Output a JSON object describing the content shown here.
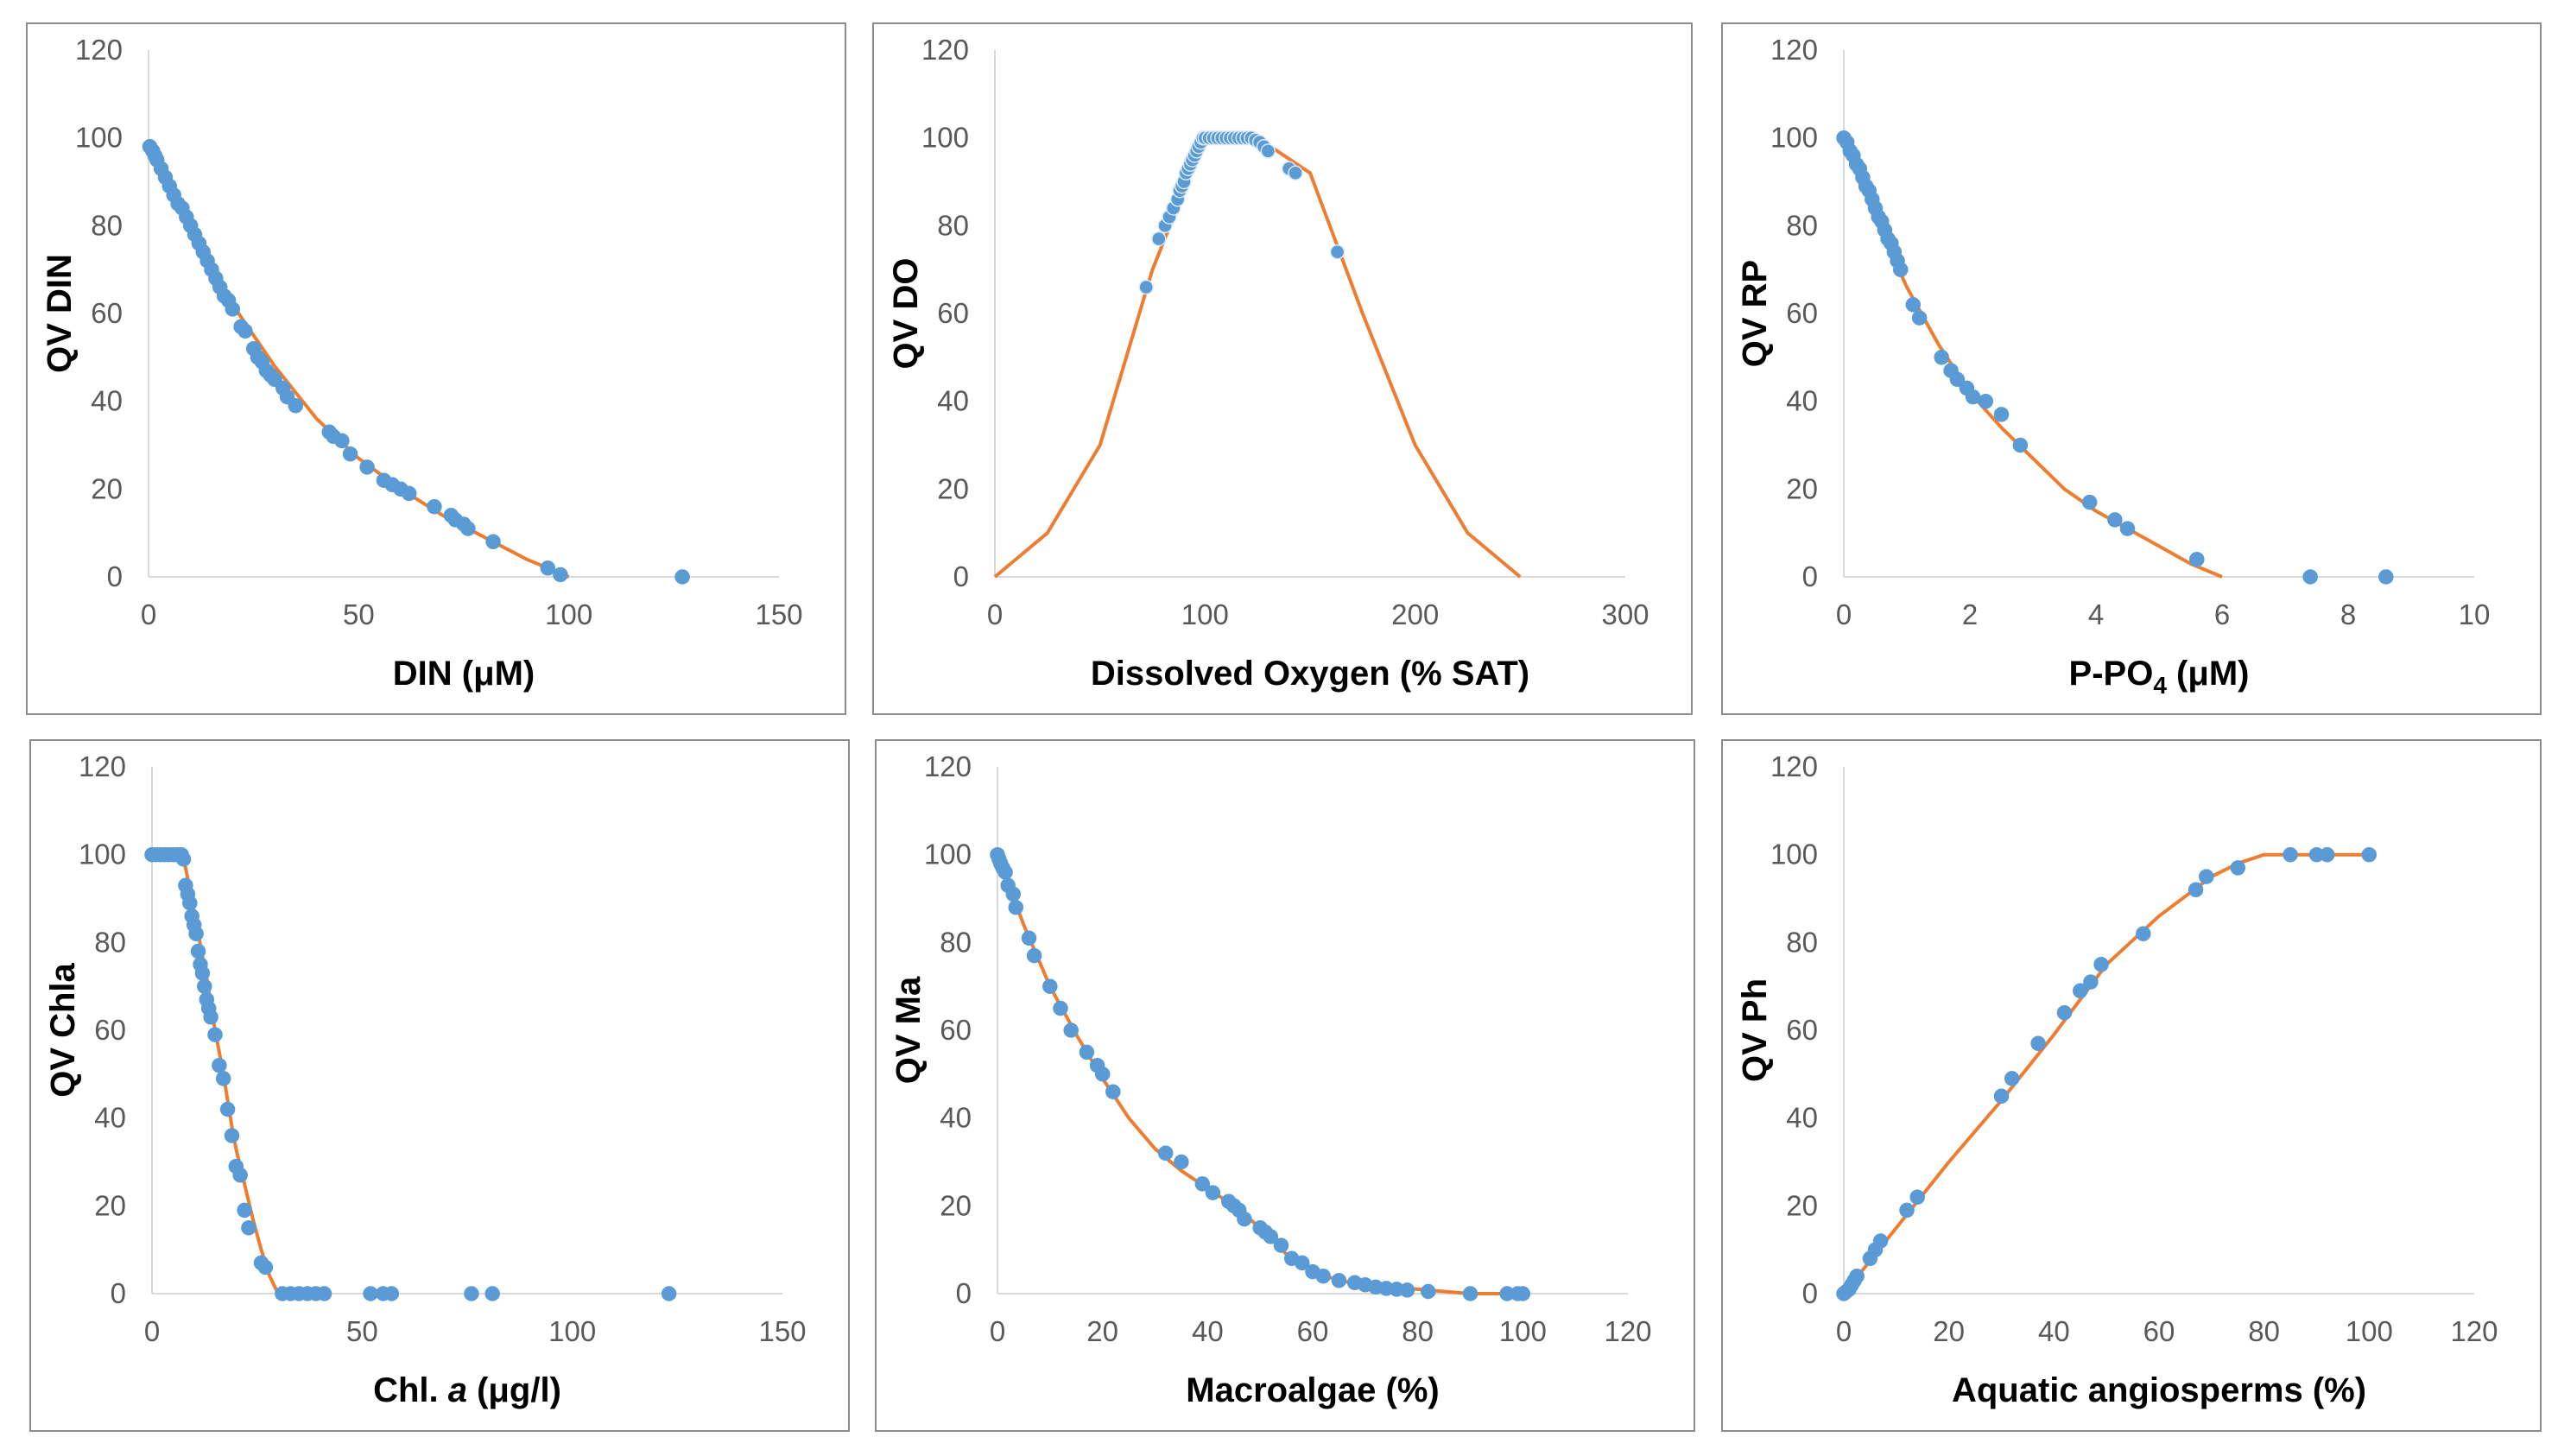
{
  "chart_data": [
    {
      "type": "scatter",
      "xlabel": "DIN (μM)",
      "ylabel": "QV DIN",
      "xlim": [
        0,
        150
      ],
      "ylim": [
        0,
        120
      ],
      "xticks": [
        0,
        50,
        100,
        150
      ],
      "yticks": [
        0,
        20,
        40,
        60,
        80,
        100,
        120
      ],
      "grid": false,
      "line": {
        "x": [
          0,
          10,
          20,
          30,
          40,
          50,
          60,
          70,
          80,
          90,
          100
        ],
        "y": [
          99,
          79,
          62,
          48,
          36,
          27,
          20,
          14,
          9,
          4,
          0
        ]
      },
      "points": {
        "x": [
          0.3,
          1,
          1.5,
          2,
          3,
          4,
          5,
          6,
          7,
          8,
          9,
          10,
          11,
          12,
          13,
          14,
          15,
          16,
          17,
          18,
          19,
          20,
          22,
          23,
          25,
          26,
          27,
          28,
          29,
          30,
          32,
          33,
          35,
          43,
          44,
          46,
          48,
          52,
          56,
          58,
          60,
          62,
          68,
          72,
          73,
          75,
          76,
          82,
          95,
          98,
          127
        ],
        "y": [
          98,
          97,
          96,
          95,
          93,
          91,
          89,
          87,
          85,
          84,
          82,
          80,
          78,
          76,
          74,
          72,
          70,
          68,
          66,
          64,
          63,
          61,
          57,
          56,
          52,
          50,
          49,
          47,
          46,
          45,
          43,
          41,
          39,
          33,
          32,
          31,
          28,
          25,
          22,
          21,
          20,
          19,
          16,
          14,
          13,
          12,
          11,
          8,
          2,
          0.5,
          0
        ]
      }
    },
    {
      "type": "scatter",
      "xlabel": "Dissolved Oxygen (% SAT)",
      "ylabel": "QV DO",
      "xlim": [
        0,
        300
      ],
      "ylim": [
        0,
        120
      ],
      "xticks": [
        0,
        100,
        200,
        300
      ],
      "yticks": [
        0,
        20,
        40,
        60,
        80,
        100,
        120
      ],
      "grid": false,
      "line": {
        "x": [
          0,
          25,
          50,
          75,
          100,
          125,
          150,
          175,
          200,
          225,
          250
        ],
        "y": [
          0,
          10,
          30,
          70,
          100,
          100,
          92,
          60,
          30,
          10,
          0
        ]
      },
      "points": {
        "x": [
          72,
          78,
          81,
          83,
          85,
          87,
          88,
          89,
          90,
          91,
          92,
          93,
          94,
          95,
          96,
          97,
          98,
          99,
          100,
          102,
          104,
          106,
          108,
          110,
          112,
          114,
          116,
          118,
          120,
          122,
          124,
          126,
          128,
          130,
          140,
          143,
          163
        ],
        "y": [
          66,
          77,
          80,
          82,
          84,
          86,
          88,
          89,
          90,
          92,
          93,
          94,
          95,
          96,
          97,
          98,
          99,
          100,
          100,
          100,
          100,
          100,
          100,
          100,
          100,
          100,
          100,
          100,
          100,
          100,
          99.5,
          99,
          98,
          97,
          93,
          92,
          74
        ]
      }
    },
    {
      "type": "scatter",
      "xlabel": "P-PO",
      "xlabel_sub": "4",
      "xlabel_unit": "(μM)",
      "ylabel": "QV RP",
      "xlim": [
        0,
        10
      ],
      "ylim": [
        0,
        120
      ],
      "xticks": [
        0,
        2,
        4,
        6,
        8,
        10
      ],
      "yticks": [
        0,
        20,
        40,
        60,
        80,
        100,
        120
      ],
      "grid": false,
      "line": {
        "x": [
          0,
          0.5,
          1,
          1.5,
          2,
          2.5,
          3,
          3.5,
          4,
          4.5,
          5,
          5.5,
          6
        ],
        "y": [
          100,
          82,
          66,
          53,
          42,
          34,
          27,
          20,
          15,
          11,
          7,
          3,
          0
        ]
      },
      "points": {
        "x": [
          0,
          0.05,
          0.1,
          0.15,
          0.2,
          0.25,
          0.3,
          0.35,
          0.4,
          0.45,
          0.5,
          0.55,
          0.6,
          0.65,
          0.7,
          0.75,
          0.8,
          0.85,
          0.9,
          1.1,
          1.2,
          1.55,
          1.7,
          1.8,
          1.95,
          2.05,
          2.25,
          2.5,
          2.8,
          3.9,
          4.3,
          4.5,
          5.6,
          7.4,
          8.6
        ],
        "y": [
          100,
          99,
          97,
          96,
          94,
          93,
          91,
          89,
          88,
          86,
          84,
          82,
          81,
          79,
          77,
          76,
          74,
          72,
          70,
          62,
          59,
          50,
          47,
          45,
          43,
          41,
          40,
          37,
          30,
          17,
          13,
          11,
          4,
          0,
          0
        ]
      }
    },
    {
      "type": "scatter",
      "xlabel": "Chl.",
      "xlabel_italic": "a",
      "xlabel_unit": "(μg/l)",
      "ylabel": "QV Chla",
      "xlim": [
        0,
        150
      ],
      "ylim": [
        0,
        120
      ],
      "xticks": [
        0,
        50,
        100,
        150
      ],
      "yticks": [
        0,
        20,
        40,
        60,
        80,
        100,
        120
      ],
      "grid": false,
      "line": {
        "x": [
          0,
          2,
          4,
          5,
          6,
          7,
          8,
          9,
          10,
          11,
          12,
          13,
          14,
          15,
          16,
          17,
          18,
          19,
          20,
          22,
          24,
          26,
          28,
          30
        ],
        "y": [
          100,
          100,
          100,
          100,
          100,
          100,
          97,
          92,
          87,
          82,
          77,
          72,
          66,
          60,
          55,
          50,
          44,
          38,
          33,
          25,
          17,
          10,
          4,
          0
        ]
      },
      "points": {
        "x": [
          0,
          1,
          2,
          3,
          4,
          5,
          6,
          7,
          7.5,
          8,
          8.5,
          9,
          9.5,
          10,
          10.5,
          11,
          11.5,
          12,
          12.5,
          13,
          13.5,
          14,
          15,
          16,
          17,
          18,
          19,
          20,
          21,
          22,
          23,
          26,
          27,
          31,
          33,
          35,
          37,
          39,
          41,
          52,
          55,
          57,
          76,
          81,
          123
        ],
        "y": [
          100,
          100,
          100,
          100,
          100,
          100,
          100,
          100,
          99,
          93,
          91,
          89,
          86,
          84,
          82,
          78,
          75,
          73,
          70,
          67,
          65,
          63,
          59,
          52,
          49,
          42,
          36,
          29,
          27,
          19,
          15,
          7,
          6,
          0,
          0,
          0,
          0,
          0,
          0,
          0,
          0,
          0,
          0,
          0,
          0
        ]
      }
    },
    {
      "type": "scatter",
      "xlabel": "Macroalgae  (%)",
      "ylabel": "QV Ma",
      "xlim": [
        0,
        120
      ],
      "ylim": [
        0,
        120
      ],
      "xticks": [
        0,
        20,
        40,
        60,
        80,
        100,
        120
      ],
      "yticks": [
        0,
        20,
        40,
        60,
        80,
        100,
        120
      ],
      "grid": false,
      "line": {
        "x": [
          0,
          5,
          10,
          15,
          20,
          25,
          30,
          35,
          40,
          45,
          50,
          55,
          60,
          65,
          70,
          75,
          80,
          85,
          90,
          100
        ],
        "y": [
          100,
          84,
          70,
          59,
          49,
          40,
          33,
          28,
          24,
          20,
          15,
          9,
          5,
          3,
          2,
          1.5,
          1,
          0.5,
          0,
          0
        ]
      },
      "points": {
        "x": [
          0,
          0.3,
          0.6,
          1,
          1.5,
          2,
          3,
          3.5,
          6,
          7,
          10,
          12,
          14,
          17,
          19,
          20,
          22,
          32,
          35,
          39,
          41,
          44,
          45,
          46,
          47,
          50,
          51,
          52,
          54,
          56,
          58,
          60,
          62,
          65,
          68,
          70,
          72,
          74,
          76,
          78,
          82,
          90,
          97,
          99,
          100
        ],
        "y": [
          100,
          99,
          98,
          97,
          96,
          93,
          91,
          88,
          81,
          77,
          70,
          65,
          60,
          55,
          52,
          50,
          46,
          32,
          30,
          25,
          23,
          21,
          20,
          19,
          17,
          15,
          14,
          13,
          11,
          8,
          7,
          5,
          4,
          3,
          2.5,
          2,
          1.5,
          1.2,
          1,
          0.8,
          0.5,
          0,
          0,
          0,
          0
        ]
      }
    },
    {
      "type": "scatter",
      "xlabel": "Aquatic angiosperms (%)",
      "ylabel": "QV Ph",
      "xlim": [
        0,
        120
      ],
      "ylim": [
        0,
        120
      ],
      "xticks": [
        0,
        20,
        40,
        60,
        80,
        100,
        120
      ],
      "yticks": [
        0,
        20,
        40,
        60,
        80,
        100,
        120
      ],
      "grid": false,
      "line": {
        "x": [
          0,
          10,
          20,
          30,
          40,
          50,
          60,
          70,
          75,
          80,
          90,
          100
        ],
        "y": [
          0,
          15,
          30,
          44,
          59,
          75,
          86,
          95,
          98,
          100,
          100,
          100
        ]
      },
      "points": {
        "x": [
          0,
          0.5,
          1,
          1.5,
          2,
          2.5,
          5,
          6,
          7,
          12,
          14,
          30,
          32,
          37,
          42,
          45,
          47,
          49,
          57,
          67,
          69,
          75,
          85,
          90,
          92,
          100
        ],
        "y": [
          0,
          0.5,
          1,
          2,
          3,
          4,
          8,
          10,
          12,
          19,
          22,
          45,
          49,
          57,
          64,
          69,
          71,
          75,
          82,
          92,
          95,
          97,
          100,
          100,
          100,
          100
        ]
      }
    }
  ]
}
